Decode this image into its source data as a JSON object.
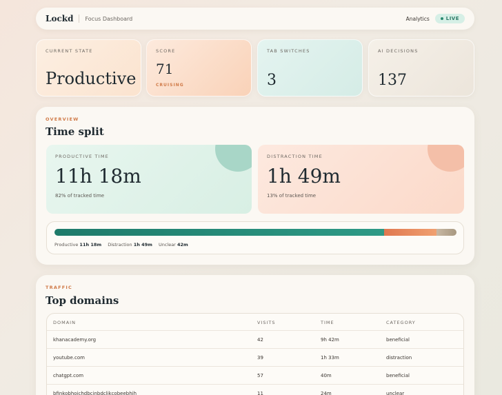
{
  "header": {
    "brand": "Lockd",
    "subtitle": "Focus Dashboard",
    "nav_link": "Analytics",
    "live_label": "LIVE"
  },
  "stats": [
    {
      "label": "CURRENT STATE",
      "value": "Productive"
    },
    {
      "label": "SCORE",
      "value": "71",
      "sub": "CRUISING"
    },
    {
      "label": "TAB SWITCHES",
      "value": "3"
    },
    {
      "label": "AI DECISIONS",
      "value": "137"
    }
  ],
  "overview": {
    "eyebrow": "OVERVIEW",
    "title": "Time split",
    "productive": {
      "label": "PRODUCTIVE TIME",
      "value": "11h 18m",
      "note": "82% of tracked time"
    },
    "distraction": {
      "label": "DISTRACTION TIME",
      "value": "1h 49m",
      "note": "13% of tracked time"
    },
    "bar": {
      "productive_fraction": 0.82,
      "distraction_fraction": 0.13,
      "unclear_fraction": 0.05,
      "legend": [
        {
          "label": "Productive",
          "value": "11h 18m"
        },
        {
          "label": "Distraction",
          "value": "1h 49m"
        },
        {
          "label": "Unclear",
          "value": "42m"
        }
      ]
    }
  },
  "traffic": {
    "eyebrow": "TRAFFIC",
    "title": "Top domains",
    "columns": [
      "DOMAIN",
      "VISITS",
      "TIME",
      "CATEGORY"
    ],
    "rows": [
      [
        "khanacademy.org",
        "42",
        "9h 42m",
        "beneficial"
      ],
      [
        "youtube.com",
        "39",
        "1h 33m",
        "distraction"
      ],
      [
        "chatgpt.com",
        "57",
        "40m",
        "beneficial"
      ],
      [
        "bfinkobhoichdbcinbdclikcobeebhih",
        "11",
        "24m",
        "unclear"
      ]
    ]
  },
  "colors": {
    "productive": "#1e7a6a",
    "distraction": "#e07850",
    "unclear": "#a89880",
    "accent": "#d07a48"
  }
}
